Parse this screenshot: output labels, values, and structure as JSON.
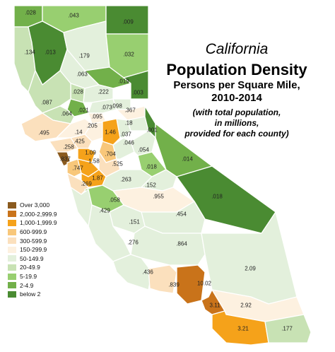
{
  "title": {
    "line1": "California",
    "line2": "Population Density",
    "line3": "Persons per Square Mile,",
    "line4": "2010-2014",
    "line5": "(with total population,",
    "line6": "in millions,",
    "line7": "provided for each county)"
  },
  "legend": [
    {
      "label": "Over 3,000",
      "color": "#8a5a1e"
    },
    {
      "label": "2,000-2,999.9",
      "color": "#c9731a"
    },
    {
      "label": "1,000-1,999.9",
      "color": "#f5a21a"
    },
    {
      "label": "600-999.9",
      "color": "#f8c77a"
    },
    {
      "label": "300-599.9",
      "color": "#fbe0bd"
    },
    {
      "label": "150-299.9",
      "color": "#fdf1e0"
    },
    {
      "label": "50-149.9",
      "color": "#e3f0dc"
    },
    {
      "label": "20-49.9",
      "color": "#c8e2b4"
    },
    {
      "label": "5-19.9",
      "color": "#98cf70"
    },
    {
      "label": "2-4.9",
      "color": "#72b04a"
    },
    {
      "label": "below 2",
      "color": "#4a8b32"
    }
  ],
  "counties": [
    {
      "label": ".028",
      "tier": 9
    },
    {
      "label": ".043",
      "tier": 8
    },
    {
      "label": ".009",
      "tier": 10
    },
    {
      "label": ".134",
      "tier": 7
    },
    {
      "label": ".013",
      "tier": 10
    },
    {
      "label": ".179",
      "tier": 6
    },
    {
      "label": ".032",
      "tier": 8
    },
    {
      "label": ".063",
      "tier": 6
    },
    {
      "label": ".019",
      "tier": 9
    },
    {
      "label": ".003",
      "tier": 10
    },
    {
      "label": ".028",
      "tier": 7
    },
    {
      "label": ".222",
      "tier": 6
    },
    {
      "label": ".087",
      "tier": 7
    },
    {
      "label": ".021",
      "tier": 9
    },
    {
      "label": ".073",
      "tier": 6
    },
    {
      "label": ".098",
      "tier": 6
    },
    {
      "label": ".064",
      "tier": 7
    },
    {
      "label": ".095",
      "tier": 5
    },
    {
      "label": ".367",
      "tier": 5
    },
    {
      "label": ".495",
      "tier": 4
    },
    {
      "label": ".14",
      "tier": 5
    },
    {
      "label": ".205",
      "tier": 5
    },
    {
      "label": "1.46",
      "tier": 2
    },
    {
      "label": ".037",
      "tier": 6
    },
    {
      "label": ".18",
      "tier": 6
    },
    {
      "label": ".001",
      "tier": 10
    },
    {
      "label": ".425",
      "tier": 4
    },
    {
      "label": ".258",
      "tier": 4
    },
    {
      "label": "1.09",
      "tier": 2
    },
    {
      "label": ".704",
      "tier": 3
    },
    {
      "label": ".046",
      "tier": 6
    },
    {
      "label": ".054",
      "tier": 6
    },
    {
      "label": ".014",
      "tier": 9
    },
    {
      "label": ".837",
      "tier": 0
    },
    {
      "label": ".747",
      "tier": 3
    },
    {
      "label": "1.58",
      "tier": 2
    },
    {
      "label": ".525",
      "tier": 4
    },
    {
      "label": ".018",
      "tier": 8
    },
    {
      "label": "1.87",
      "tier": 2
    },
    {
      "label": ".269",
      "tier": 4
    },
    {
      "label": ".263",
      "tier": 6
    },
    {
      "label": ".152",
      "tier": 6
    },
    {
      "label": ".018",
      "tier": 10
    },
    {
      "label": ".955",
      "tier": 5
    },
    {
      "label": ".058",
      "tier": 8
    },
    {
      "label": ".429",
      "tier": 6
    },
    {
      "label": ".454",
      "tier": 6
    },
    {
      "label": ".151",
      "tier": 6
    },
    {
      "label": ".276",
      "tier": 6
    },
    {
      "label": ".864",
      "tier": 6
    },
    {
      "label": "2.09",
      "tier": 6
    },
    {
      "label": ".436",
      "tier": 6
    },
    {
      "label": ".839",
      "tier": 4
    },
    {
      "label": "10.02",
      "tier": 1
    },
    {
      "label": "3.11",
      "tier": 1
    },
    {
      "label": "2.92",
      "tier": 5
    },
    {
      "label": "3.21",
      "tier": 2
    },
    {
      "label": ".177",
      "tier": 7
    }
  ]
}
